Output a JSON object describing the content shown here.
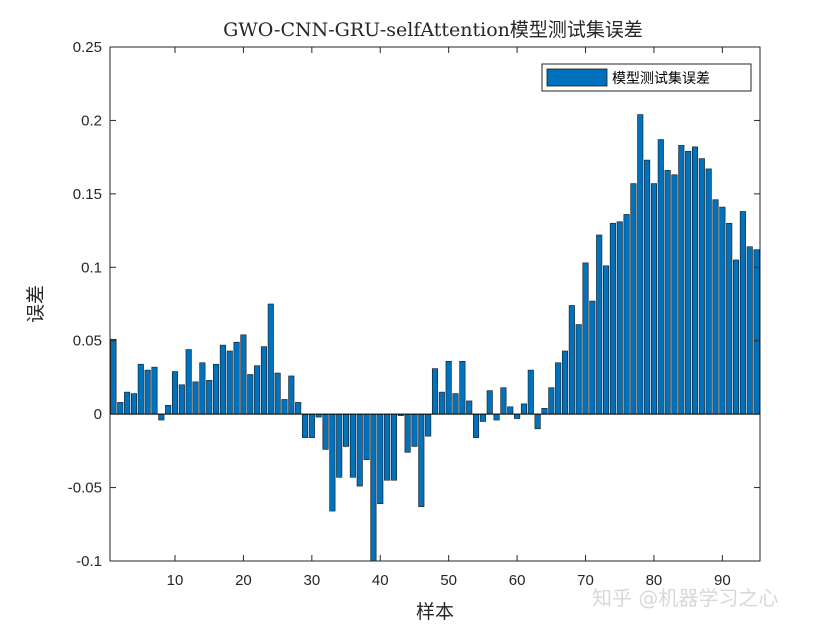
{
  "chart_data": {
    "type": "bar",
    "title": "GWO-CNN-GRU-selfAttention模型测试集误差",
    "xlabel": "样本",
    "ylabel": "误差",
    "xlim": [
      0.5,
      95.5
    ],
    "ylim": [
      -0.1,
      0.25
    ],
    "xticks": [
      10,
      20,
      30,
      40,
      50,
      60,
      70,
      80,
      90
    ],
    "xtick_labels": [
      "10",
      "20",
      "30",
      "40",
      "50",
      "60",
      "70",
      "80",
      "90"
    ],
    "yticks": [
      -0.1,
      -0.05,
      0,
      0.05,
      0.1,
      0.15,
      0.2,
      0.25
    ],
    "ytick_labels": [
      "-0.1",
      "-0.05",
      "0",
      "0.05",
      "0.1",
      "0.15",
      "0.2",
      "0.25"
    ],
    "grid": false,
    "legend_position": "top-right",
    "series": [
      {
        "name": "模型测试集误差",
        "color": "#0072bd",
        "x": [
          1,
          2,
          3,
          4,
          5,
          6,
          7,
          8,
          9,
          10,
          11,
          12,
          13,
          14,
          15,
          16,
          17,
          18,
          19,
          20,
          21,
          22,
          23,
          24,
          25,
          26,
          27,
          28,
          29,
          30,
          31,
          32,
          33,
          34,
          35,
          36,
          37,
          38,
          39,
          40,
          41,
          42,
          43,
          44,
          45,
          46,
          47,
          48,
          49,
          50,
          51,
          52,
          53,
          54,
          55,
          56,
          57,
          58,
          59,
          60,
          61,
          62,
          63,
          64,
          65,
          66,
          67,
          68,
          69,
          70,
          71,
          72,
          73,
          74,
          75,
          76,
          77,
          78,
          79,
          80,
          81,
          82,
          83,
          84,
          85,
          86,
          87,
          88,
          89,
          90,
          91,
          92,
          93,
          94,
          95
        ],
        "values": [
          0.051,
          0.008,
          0.015,
          0.014,
          0.034,
          0.03,
          0.032,
          -0.004,
          0.006,
          0.029,
          0.02,
          0.044,
          0.022,
          0.035,
          0.023,
          0.034,
          0.047,
          0.043,
          0.049,
          0.054,
          0.027,
          0.033,
          0.046,
          0.075,
          0.028,
          0.01,
          0.026,
          0.008,
          -0.016,
          -0.016,
          -0.002,
          -0.024,
          -0.066,
          -0.043,
          -0.022,
          -0.043,
          -0.049,
          -0.031,
          -0.102,
          -0.061,
          -0.045,
          -0.045,
          -0.001,
          -0.026,
          -0.022,
          -0.063,
          -0.015,
          0.031,
          0.015,
          0.036,
          0.014,
          0.036,
          0.009,
          -0.016,
          -0.005,
          0.016,
          -0.004,
          0.018,
          0.005,
          -0.003,
          0.007,
          0.03,
          -0.01,
          0.004,
          0.018,
          0.035,
          0.043,
          0.074,
          0.061,
          0.103,
          0.077,
          0.122,
          0.101,
          0.13,
          0.131,
          0.136,
          0.157,
          0.204,
          0.173,
          0.157,
          0.187,
          0.166,
          0.163,
          0.183,
          0.179,
          0.182,
          0.174,
          0.167,
          0.146,
          0.141,
          0.13,
          0.105,
          0.138,
          0.114,
          0.112
        ]
      }
    ]
  },
  "watermark": "知乎 @机器学习之心"
}
